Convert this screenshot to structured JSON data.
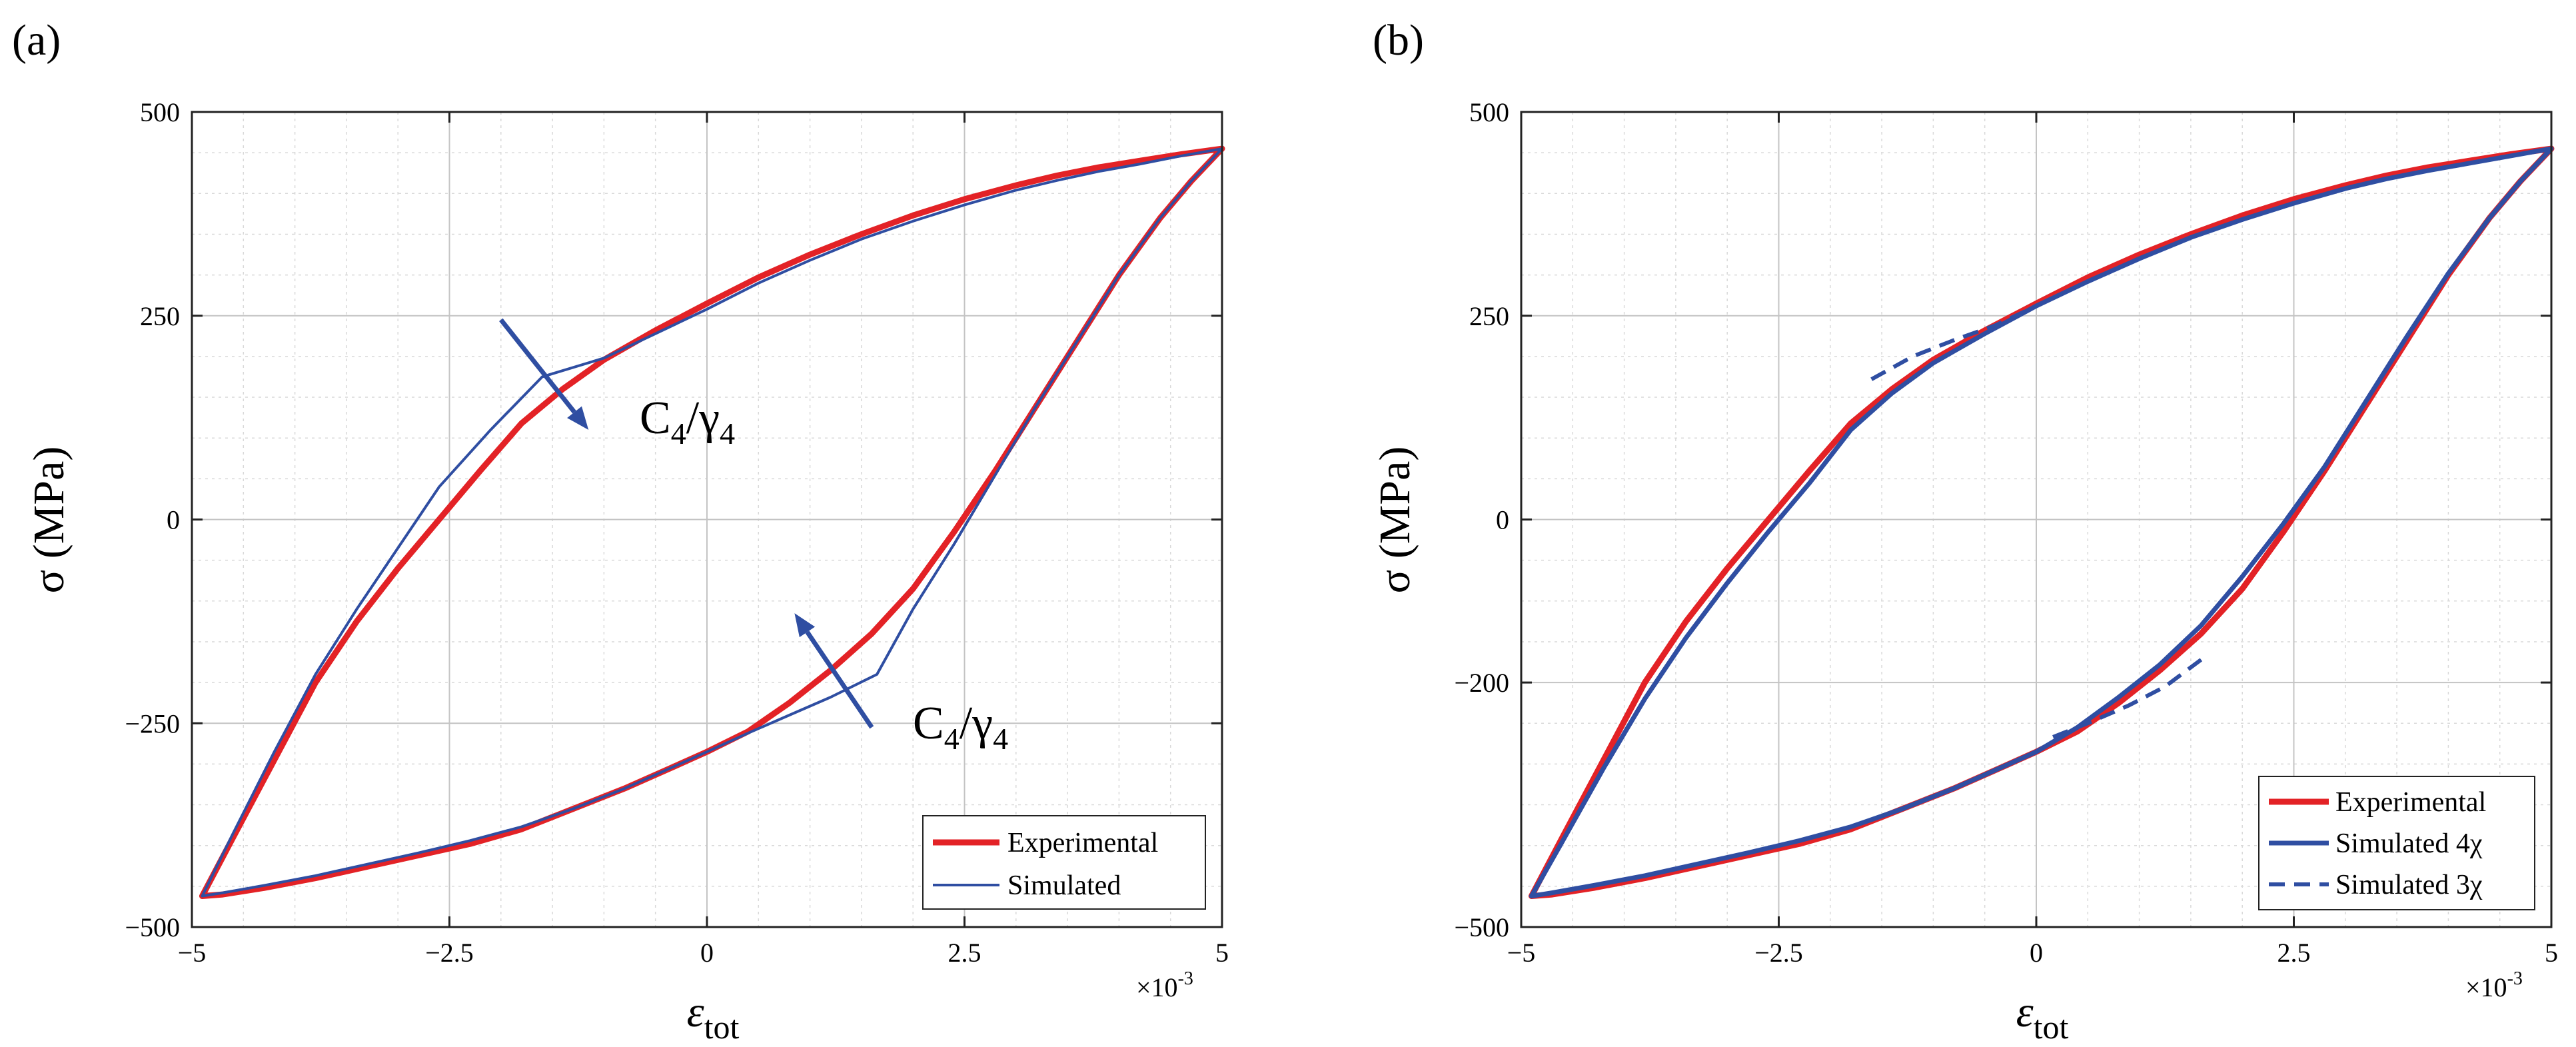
{
  "chart_data": [
    {
      "panel_label": "(a)",
      "type": "line",
      "xlabel": "ε",
      "xlabel_sub": "tot",
      "x_multiplier": "×10",
      "x_multiplier_exp": "-3",
      "ylabel": "σ (MPa)",
      "xlim": [
        -5,
        5
      ],
      "ylim": [
        -500,
        500
      ],
      "xticks": [
        -5,
        -2.5,
        0,
        2.5,
        5
      ],
      "xtick_labels": [
        "−5",
        "−2.5",
        "0",
        "2.5",
        "5"
      ],
      "yticks": [
        -500,
        -250,
        0,
        250,
        500
      ],
      "ytick_labels": [
        "−500",
        "−250",
        "0",
        "250",
        "500"
      ],
      "grid": true,
      "minor_grid": true,
      "legend_position": "bottom-right",
      "annotations": [
        {
          "text": "C",
          "sub1": "4",
          "mid": "/γ",
          "sub2": "4",
          "x": -0.8,
          "y": 90
        },
        {
          "text": "C",
          "sub1": "4",
          "mid": "/γ",
          "sub2": "4",
          "x": 1.0,
          "y": -285
        }
      ],
      "arrows": [
        {
          "from": [
            -2.0,
            245
          ],
          "to": [
            -1.15,
            110
          ]
        },
        {
          "from": [
            1.6,
            -255
          ],
          "to": [
            0.85,
            -115
          ]
        }
      ],
      "series": [
        {
          "name": "Experimental",
          "color": "#e32226",
          "width": 9,
          "x": [
            5.0,
            4.6,
            4.2,
            3.8,
            3.4,
            3.0,
            2.5,
            2.0,
            1.5,
            1.0,
            0.5,
            0.0,
            -0.5,
            -1.0,
            -1.4,
            -1.8,
            -2.2,
            -2.6,
            -3.0,
            -3.4,
            -3.8,
            -4.2,
            -4.6,
            -4.9,
            -4.7,
            -4.3,
            -3.8,
            -3.3,
            -2.8,
            -2.3,
            -1.8,
            -1.3,
            -0.8,
            -0.3,
            0.0,
            0.4,
            0.8,
            1.2,
            1.6,
            2.0,
            2.4,
            2.8,
            3.2,
            3.6,
            4.0,
            4.4,
            4.7,
            5.0
          ],
          "y": [
            455,
            448,
            440,
            432,
            422,
            410,
            393,
            373,
            350,
            325,
            297,
            265,
            232,
            196,
            160,
            118,
            60,
            0,
            -60,
            -125,
            -200,
            -295,
            -390,
            -462,
            -460,
            -452,
            -440,
            -426,
            -412,
            -398,
            -380,
            -355,
            -330,
            -302,
            -285,
            -260,
            -225,
            -185,
            -140,
            -85,
            -15,
            60,
            140,
            220,
            300,
            370,
            415,
            455
          ]
        },
        {
          "name": "Simulated",
          "color": "#2f4ea2",
          "width": 4,
          "x": [
            5.0,
            4.6,
            4.2,
            3.8,
            3.4,
            3.0,
            2.5,
            2.0,
            1.5,
            1.0,
            0.5,
            0.0,
            -0.5,
            -1.0,
            -1.6,
            -2.1,
            -2.6,
            -3.0,
            -3.4,
            -3.8,
            -4.2,
            -4.6,
            -4.9,
            -4.7,
            -4.3,
            -3.8,
            -3.3,
            -2.8,
            -2.3,
            -1.8,
            -1.3,
            -0.8,
            -0.3,
            0.0,
            0.4,
            0.8,
            1.2,
            1.65,
            2.0,
            2.4,
            2.8,
            3.2,
            3.6,
            4.0,
            4.4,
            4.7,
            5.0
          ],
          "y": [
            455,
            446,
            436,
            427,
            416,
            404,
            386,
            366,
            344,
            318,
            290,
            258,
            228,
            198,
            175,
            110,
            40,
            -35,
            -110,
            -190,
            -285,
            -385,
            -462,
            -458,
            -449,
            -437,
            -423,
            -409,
            -394,
            -377,
            -355,
            -330,
            -302,
            -285,
            -262,
            -240,
            -218,
            -190,
            -110,
            -30,
            55,
            140,
            220,
            300,
            370,
            415,
            455
          ]
        }
      ]
    },
    {
      "panel_label": "(b)",
      "type": "line",
      "xlabel": "ε",
      "xlabel_sub": "tot",
      "x_multiplier": "×10",
      "x_multiplier_exp": "-3",
      "ylabel": "σ (MPa)",
      "xlim": [
        -5,
        5
      ],
      "ylim": [
        -500,
        500
      ],
      "xticks": [
        -5,
        -2.5,
        0,
        2.5,
        5
      ],
      "xtick_labels": [
        "−5",
        "−2.5",
        "0",
        "2.5",
        "5"
      ],
      "yticks": [
        -500,
        -200,
        0,
        250,
        500
      ],
      "ytick_labels": [
        "−500",
        "−200",
        "0",
        "250",
        "500"
      ],
      "grid": true,
      "minor_grid": true,
      "legend_position": "bottom-right",
      "annotations": [],
      "arrows": [],
      "series": [
        {
          "name": "Experimental",
          "color": "#e32226",
          "width": 9,
          "dash": "",
          "x": [
            5.0,
            4.6,
            4.2,
            3.8,
            3.4,
            3.0,
            2.5,
            2.0,
            1.5,
            1.0,
            0.5,
            0.0,
            -0.5,
            -1.0,
            -1.4,
            -1.8,
            -2.2,
            -2.6,
            -3.0,
            -3.4,
            -3.8,
            -4.2,
            -4.6,
            -4.9,
            -4.7,
            -4.3,
            -3.8,
            -3.3,
            -2.8,
            -2.3,
            -1.8,
            -1.3,
            -0.8,
            -0.3,
            0.0,
            0.4,
            0.8,
            1.2,
            1.6,
            2.0,
            2.4,
            2.8,
            3.2,
            3.6,
            4.0,
            4.4,
            4.7,
            5.0
          ],
          "y": [
            455,
            448,
            440,
            432,
            422,
            410,
            393,
            373,
            350,
            325,
            297,
            265,
            232,
            196,
            160,
            118,
            60,
            0,
            -60,
            -125,
            -200,
            -295,
            -390,
            -462,
            -460,
            -452,
            -440,
            -426,
            -412,
            -398,
            -380,
            -355,
            -330,
            -302,
            -285,
            -260,
            -225,
            -185,
            -140,
            -85,
            -15,
            60,
            140,
            220,
            300,
            370,
            415,
            455
          ]
        },
        {
          "name": "Simulated 4χ",
          "color": "#2f4ea2",
          "width": 7,
          "dash": "",
          "x": [
            5.0,
            4.6,
            4.2,
            3.8,
            3.4,
            3.0,
            2.5,
            2.0,
            1.5,
            1.0,
            0.5,
            0.0,
            -0.5,
            -1.0,
            -1.4,
            -1.8,
            -2.2,
            -2.6,
            -3.0,
            -3.4,
            -3.8,
            -4.2,
            -4.6,
            -4.9,
            -4.7,
            -4.3,
            -3.8,
            -3.3,
            -2.8,
            -2.3,
            -1.8,
            -1.3,
            -0.8,
            -0.3,
            0.0,
            0.4,
            0.8,
            1.2,
            1.6,
            2.0,
            2.4,
            2.8,
            3.2,
            3.6,
            4.0,
            4.4,
            4.7,
            5.0
          ],
          "y": [
            455,
            446,
            437,
            428,
            418,
            406,
            388,
            368,
            346,
            320,
            292,
            262,
            228,
            192,
            155,
            110,
            45,
            -15,
            -78,
            -145,
            -220,
            -305,
            -395,
            -462,
            -458,
            -449,
            -437,
            -423,
            -409,
            -394,
            -377,
            -355,
            -330,
            -302,
            -285,
            -255,
            -218,
            -178,
            -130,
            -70,
            -5,
            65,
            145,
            225,
            302,
            370,
            415,
            455
          ]
        },
        {
          "name": "Simulated 3χ",
          "color": "#2f4ea2",
          "width": 6,
          "dash": "24 14",
          "x": [
            -1.6,
            -1.2,
            -0.8,
            -0.4,
            0.0,
            1.6,
            1.25,
            0.9,
            0.5,
            0.1
          ],
          "y": [
            172,
            200,
            220,
            238,
            262,
            -172,
            -205,
            -228,
            -250,
            -270
          ]
        }
      ]
    }
  ],
  "legend_labels_a": [
    "Experimental",
    "Simulated"
  ],
  "legend_labels_b": [
    "Experimental",
    "Simulated 4χ",
    "Simulated 3χ"
  ]
}
